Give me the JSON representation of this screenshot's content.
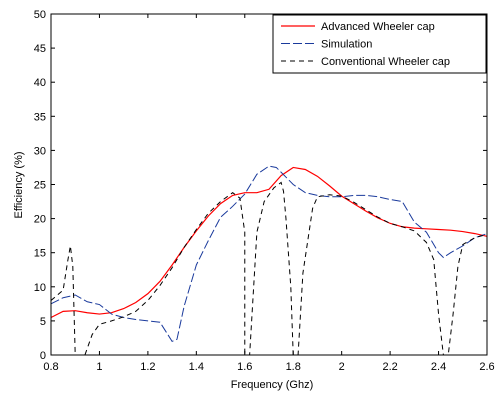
{
  "chart_data": {
    "type": "line",
    "title": "",
    "xlabel": "Frequency (Ghz)",
    "ylabel": "Efficiency (%)",
    "xlim": [
      0.8,
      2.6
    ],
    "ylim": [
      0,
      50
    ],
    "xticks": [
      0.8,
      1,
      1.2,
      1.4,
      1.6,
      1.8,
      2,
      2.2,
      2.4,
      2.6
    ],
    "xtick_labels": [
      "0.8",
      "1",
      "1.2",
      "1.4",
      "1.6",
      "1.8",
      "2",
      "2.2",
      "2.4",
      "2.6"
    ],
    "yticks": [
      0,
      5,
      10,
      15,
      20,
      25,
      30,
      35,
      40,
      45,
      50
    ],
    "ytick_labels": [
      "0",
      "5",
      "10",
      "15",
      "20",
      "25",
      "30",
      "35",
      "40",
      "45",
      "50"
    ],
    "grid": false,
    "legend_position": "top-right",
    "series": [
      {
        "name": "Advanced Wheeler cap",
        "color": "#ff0000",
        "dash": "solid",
        "x": [
          0.8,
          0.85,
          0.9,
          0.95,
          1.0,
          1.05,
          1.1,
          1.15,
          1.2,
          1.25,
          1.3,
          1.35,
          1.4,
          1.45,
          1.5,
          1.55,
          1.6,
          1.65,
          1.7,
          1.75,
          1.8,
          1.85,
          1.9,
          1.95,
          2.0,
          2.05,
          2.1,
          2.15,
          2.2,
          2.25,
          2.3,
          2.35,
          2.4,
          2.45,
          2.5,
          2.55,
          2.6
        ],
        "y": [
          5.5,
          6.4,
          6.5,
          6.2,
          6.0,
          6.2,
          6.8,
          7.7,
          9.0,
          10.8,
          13.2,
          15.8,
          18.2,
          20.4,
          22.2,
          23.4,
          23.8,
          23.8,
          24.3,
          26.3,
          27.5,
          27.2,
          26.2,
          24.8,
          23.3,
          22.2,
          21.1,
          20.1,
          19.3,
          18.8,
          18.6,
          18.5,
          18.4,
          18.3,
          18.1,
          17.8,
          17.4
        ]
      },
      {
        "name": "Simulation",
        "color": "#1a3a9c",
        "dash": "longdash",
        "x": [
          0.8,
          0.85,
          0.9,
          0.95,
          1.0,
          1.05,
          1.1,
          1.15,
          1.2,
          1.25,
          1.3,
          1.32,
          1.35,
          1.4,
          1.45,
          1.5,
          1.55,
          1.6,
          1.65,
          1.7,
          1.73,
          1.75,
          1.8,
          1.85,
          1.9,
          1.95,
          2.0,
          2.05,
          2.1,
          2.15,
          2.2,
          2.25,
          2.3,
          2.35,
          2.4,
          2.42,
          2.45,
          2.5,
          2.55,
          2.6
        ],
        "y": [
          7.5,
          8.4,
          8.8,
          7.8,
          7.4,
          6.0,
          5.5,
          5.2,
          5.0,
          4.8,
          2.0,
          2.3,
          7.2,
          13.2,
          16.8,
          20.2,
          21.8,
          23.6,
          26.5,
          27.7,
          27.5,
          26.8,
          25.0,
          23.8,
          23.4,
          23.2,
          23.2,
          23.4,
          23.4,
          23.2,
          22.8,
          22.5,
          19.5,
          18.0,
          15.0,
          14.3,
          15.0,
          16.0,
          17.2,
          17.8
        ]
      },
      {
        "name": "Conventional Wheeler cap",
        "color": "#000000",
        "dash": "dash",
        "x": [
          0.8,
          0.85,
          0.87,
          0.88,
          0.89,
          0.9,
          0.92,
          0.94,
          0.95,
          0.97,
          1.0,
          1.05,
          1.1,
          1.15,
          1.2,
          1.25,
          1.3,
          1.35,
          1.4,
          1.45,
          1.5,
          1.55,
          1.58,
          1.6,
          1.6,
          1.61,
          1.62,
          1.65,
          1.68,
          1.72,
          1.75,
          1.76,
          1.77,
          1.79,
          1.8,
          1.81,
          1.82,
          1.84,
          1.88,
          1.9,
          1.95,
          2.0,
          2.05,
          2.1,
          2.15,
          2.2,
          2.25,
          2.3,
          2.35,
          2.38,
          2.4,
          2.42,
          2.43,
          2.44,
          2.46,
          2.48,
          2.5,
          2.55,
          2.6
        ],
        "y": [
          8.0,
          9.5,
          14.0,
          16.0,
          13.0,
          0.0,
          0.0,
          0.0,
          1.0,
          3.0,
          4.5,
          5.0,
          5.6,
          6.4,
          8.0,
          10.2,
          12.8,
          15.8,
          18.4,
          20.8,
          22.5,
          23.8,
          23.0,
          18.0,
          0.0,
          0.0,
          0.0,
          18.0,
          22.5,
          24.5,
          25.3,
          24.0,
          20.0,
          10.0,
          0.0,
          0.0,
          0.0,
          12.0,
          21.5,
          23.2,
          23.5,
          23.3,
          22.4,
          21.3,
          20.2,
          19.3,
          18.8,
          18.2,
          16.5,
          14.0,
          6.0,
          0.0,
          0.0,
          0.0,
          6.0,
          13.0,
          16.2,
          17.2,
          17.7
        ]
      }
    ]
  }
}
